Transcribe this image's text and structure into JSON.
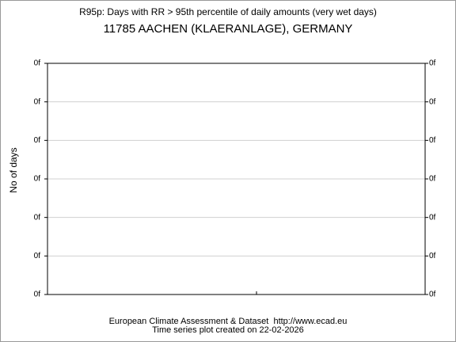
{
  "chart_data": {
    "type": "line",
    "title": "R95p: Days with RR > 95th percentile of daily amounts (very wet days)",
    "subtitle": "11785 AACHEN (KLAERANLAGE), GERMANY",
    "ylabel": "No of days",
    "series": [],
    "ylim": [
      0,
      6
    ],
    "yticks": [
      {
        "value": 0,
        "label": "0f"
      },
      {
        "value": 1,
        "label": "0f"
      },
      {
        "value": 2,
        "label": "0f"
      },
      {
        "value": 3,
        "label": "0f"
      },
      {
        "value": 4,
        "label": "0f"
      },
      {
        "value": 5,
        "label": "0f"
      },
      {
        "value": 6,
        "label": "0f"
      }
    ],
    "grid": true,
    "source": "European Climate Assessment & Dataset  http://www.ecad.eu",
    "created": "Time series plot created on 22-02-2026"
  }
}
